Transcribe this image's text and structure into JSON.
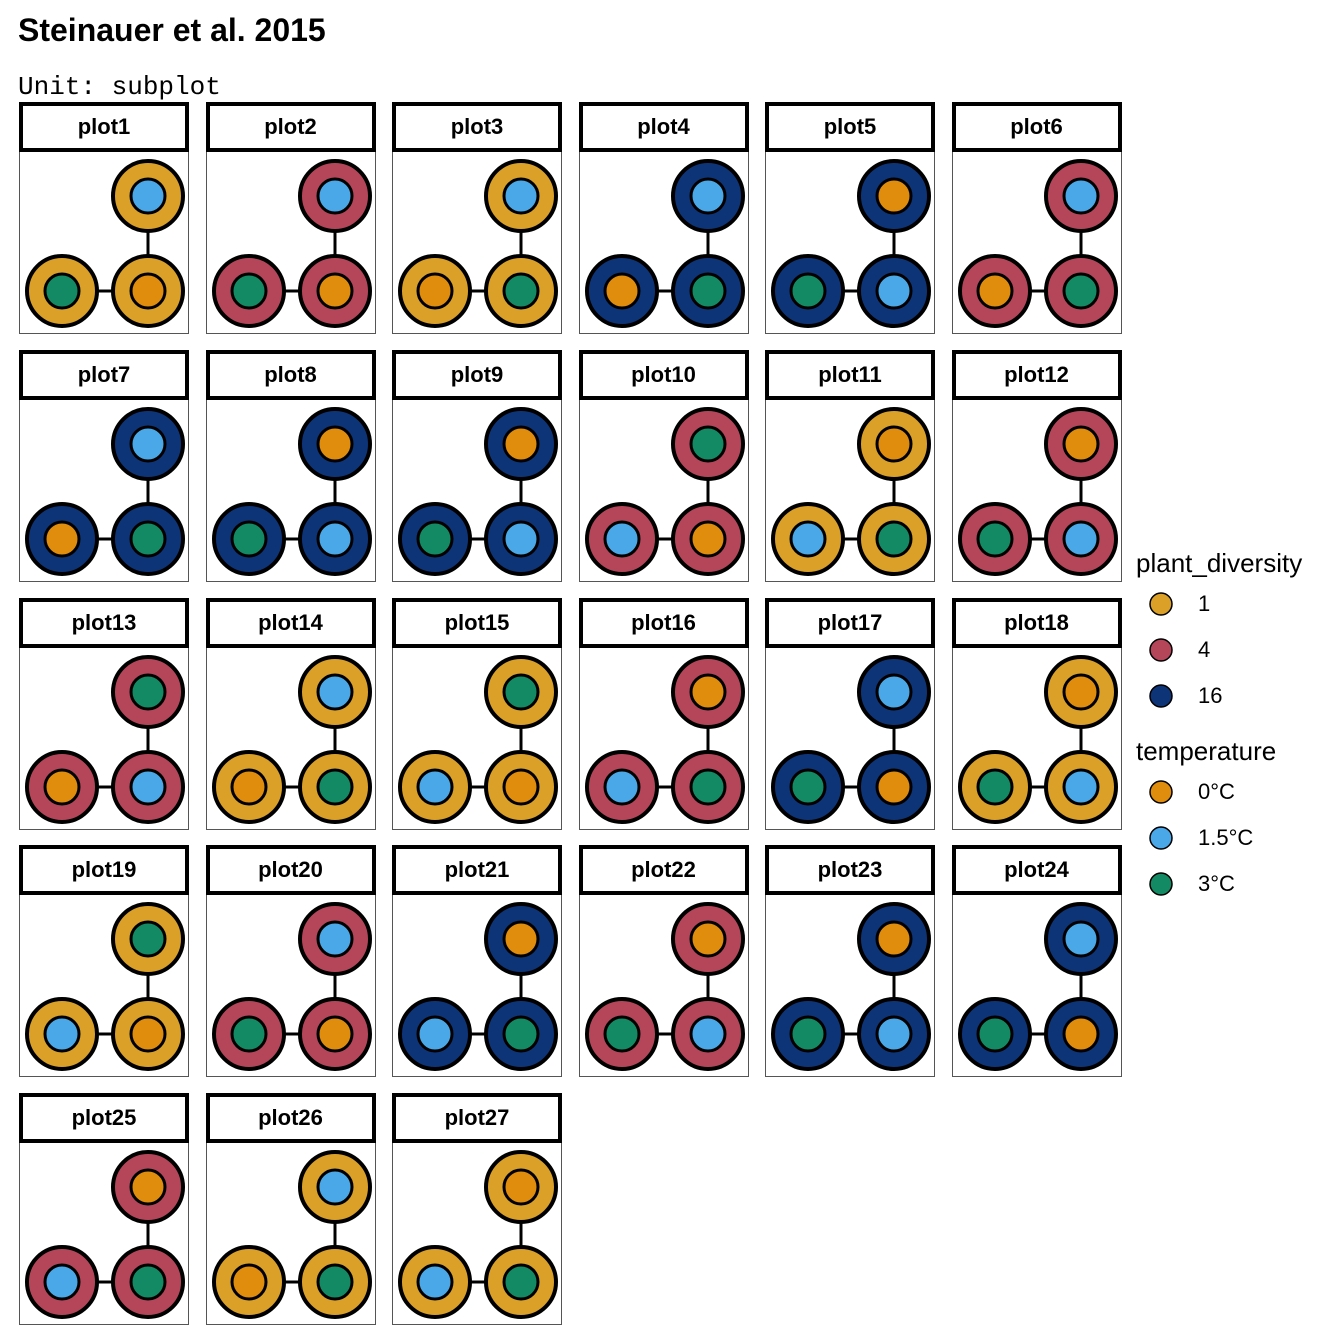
{
  "title": "Steinauer et al. 2015",
  "subtitle": "Unit: subplot",
  "colors": {
    "diversity": {
      "1": "#DAA028",
      "4": "#B5465A",
      "16": "#0E3478"
    },
    "temperature": {
      "0°C": "#E08C0C",
      "1.5°C": "#4AA8E8",
      "3°C": "#138A63"
    },
    "outline": "#000000"
  },
  "legend": {
    "diversity_title": "plant_diversity",
    "diversity_items": [
      "1",
      "4",
      "16"
    ],
    "temperature_title": "temperature",
    "temperature_items": [
      "0°C",
      "1.5°C",
      "3°C"
    ]
  },
  "panels": [
    {
      "label": "plot1",
      "diversity": "1",
      "nodes": [
        "1.5°C",
        "3°C",
        "0°C"
      ]
    },
    {
      "label": "plot2",
      "diversity": "4",
      "nodes": [
        "1.5°C",
        "3°C",
        "0°C"
      ]
    },
    {
      "label": "plot3",
      "diversity": "1",
      "nodes": [
        "1.5°C",
        "0°C",
        "3°C"
      ]
    },
    {
      "label": "plot4",
      "diversity": "16",
      "nodes": [
        "1.5°C",
        "0°C",
        "3°C"
      ]
    },
    {
      "label": "plot5",
      "diversity": "16",
      "nodes": [
        "0°C",
        "3°C",
        "1.5°C"
      ]
    },
    {
      "label": "plot6",
      "diversity": "4",
      "nodes": [
        "1.5°C",
        "0°C",
        "3°C"
      ]
    },
    {
      "label": "plot7",
      "diversity": "16",
      "nodes": [
        "1.5°C",
        "0°C",
        "3°C"
      ]
    },
    {
      "label": "plot8",
      "diversity": "16",
      "nodes": [
        "0°C",
        "3°C",
        "1.5°C"
      ]
    },
    {
      "label": "plot9",
      "diversity": "16",
      "nodes": [
        "0°C",
        "3°C",
        "1.5°C"
      ]
    },
    {
      "label": "plot10",
      "diversity": "4",
      "nodes": [
        "3°C",
        "1.5°C",
        "0°C"
      ]
    },
    {
      "label": "plot11",
      "diversity": "1",
      "nodes": [
        "0°C",
        "1.5°C",
        "3°C"
      ]
    },
    {
      "label": "plot12",
      "diversity": "4",
      "nodes": [
        "0°C",
        "3°C",
        "1.5°C"
      ]
    },
    {
      "label": "plot13",
      "diversity": "4",
      "nodes": [
        "3°C",
        "0°C",
        "1.5°C"
      ]
    },
    {
      "label": "plot14",
      "diversity": "1",
      "nodes": [
        "1.5°C",
        "0°C",
        "3°C"
      ]
    },
    {
      "label": "plot15",
      "diversity": "1",
      "nodes": [
        "3°C",
        "1.5°C",
        "0°C"
      ]
    },
    {
      "label": "plot16",
      "diversity": "4",
      "nodes": [
        "0°C",
        "1.5°C",
        "3°C"
      ]
    },
    {
      "label": "plot17",
      "diversity": "16",
      "nodes": [
        "1.5°C",
        "3°C",
        "0°C"
      ]
    },
    {
      "label": "plot18",
      "diversity": "1",
      "nodes": [
        "0°C",
        "3°C",
        "1.5°C"
      ]
    },
    {
      "label": "plot19",
      "diversity": "1",
      "nodes": [
        "3°C",
        "1.5°C",
        "0°C"
      ]
    },
    {
      "label": "plot20",
      "diversity": "4",
      "nodes": [
        "1.5°C",
        "3°C",
        "0°C"
      ]
    },
    {
      "label": "plot21",
      "diversity": "16",
      "nodes": [
        "0°C",
        "1.5°C",
        "3°C"
      ]
    },
    {
      "label": "plot22",
      "diversity": "4",
      "nodes": [
        "0°C",
        "3°C",
        "1.5°C"
      ]
    },
    {
      "label": "plot23",
      "diversity": "16",
      "nodes": [
        "0°C",
        "3°C",
        "1.5°C"
      ]
    },
    {
      "label": "plot24",
      "diversity": "16",
      "nodes": [
        "1.5°C",
        "3°C",
        "0°C"
      ]
    },
    {
      "label": "plot25",
      "diversity": "4",
      "nodes": [
        "0°C",
        "1.5°C",
        "3°C"
      ]
    },
    {
      "label": "plot26",
      "diversity": "1",
      "nodes": [
        "1.5°C",
        "0°C",
        "3°C"
      ]
    },
    {
      "label": "plot27",
      "diversity": "1",
      "nodes": [
        "0°C",
        "1.5°C",
        "3°C"
      ]
    }
  ]
}
